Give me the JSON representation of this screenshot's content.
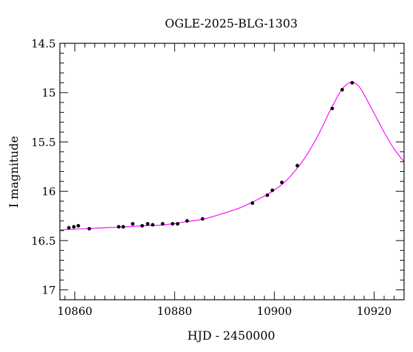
{
  "chart_data": {
    "type": "scatter",
    "title": "OGLE-2025-BLG-1303",
    "xlabel": "HJD - 2450000",
    "ylabel": "I magnitude",
    "xlim": [
      10857,
      10926
    ],
    "ylim": [
      17.1,
      14.5
    ],
    "y_inverted": true,
    "x_ticks": [
      10860,
      10880,
      10900,
      10920
    ],
    "x_tick_labels": [
      "10860",
      "10880",
      "10900",
      "10920"
    ],
    "y_ticks": [
      14.5,
      15,
      15.5,
      16,
      16.5,
      17
    ],
    "y_tick_labels": [
      "14.5",
      "15",
      "15.5",
      "16",
      "16.5",
      "17"
    ],
    "grid": false,
    "series": [
      {
        "kind": "points",
        "color": "#000000",
        "x": [
          10858.8,
          10859.8,
          10860.7,
          10862.9,
          10868.8,
          10869.7,
          10871.6,
          10873.5,
          10874.6,
          10875.6,
          10877.6,
          10879.6,
          10880.6,
          10882.5,
          10885.6,
          10895.6,
          10898.6,
          10899.6,
          10901.5,
          10904.6,
          10911.6,
          10913.6,
          10915.6
        ],
        "y": [
          16.37,
          16.36,
          16.35,
          16.38,
          16.36,
          16.36,
          16.33,
          16.35,
          16.33,
          16.34,
          16.33,
          16.33,
          16.33,
          16.3,
          16.28,
          16.12,
          16.04,
          15.99,
          15.91,
          15.74,
          15.16,
          14.97,
          14.9
        ]
      },
      {
        "kind": "line",
        "color": "#ff00ff",
        "x": [
          10857,
          10862,
          10866,
          10870,
          10874,
          10878,
          10882,
          10886,
          10890,
          10893,
          10896,
          10899,
          10902,
          10905,
          10907,
          10909,
          10911,
          10913,
          10914,
          10915,
          10916,
          10917,
          10918,
          10920,
          10922,
          10924,
          10926
        ],
        "y": [
          16.39,
          16.38,
          16.37,
          16.36,
          16.35,
          16.34,
          16.31,
          16.28,
          16.22,
          16.17,
          16.1,
          16.02,
          15.91,
          15.74,
          15.59,
          15.41,
          15.2,
          15.01,
          14.94,
          14.9,
          14.9,
          14.94,
          15.02,
          15.21,
          15.4,
          15.57,
          15.7
        ]
      }
    ]
  }
}
